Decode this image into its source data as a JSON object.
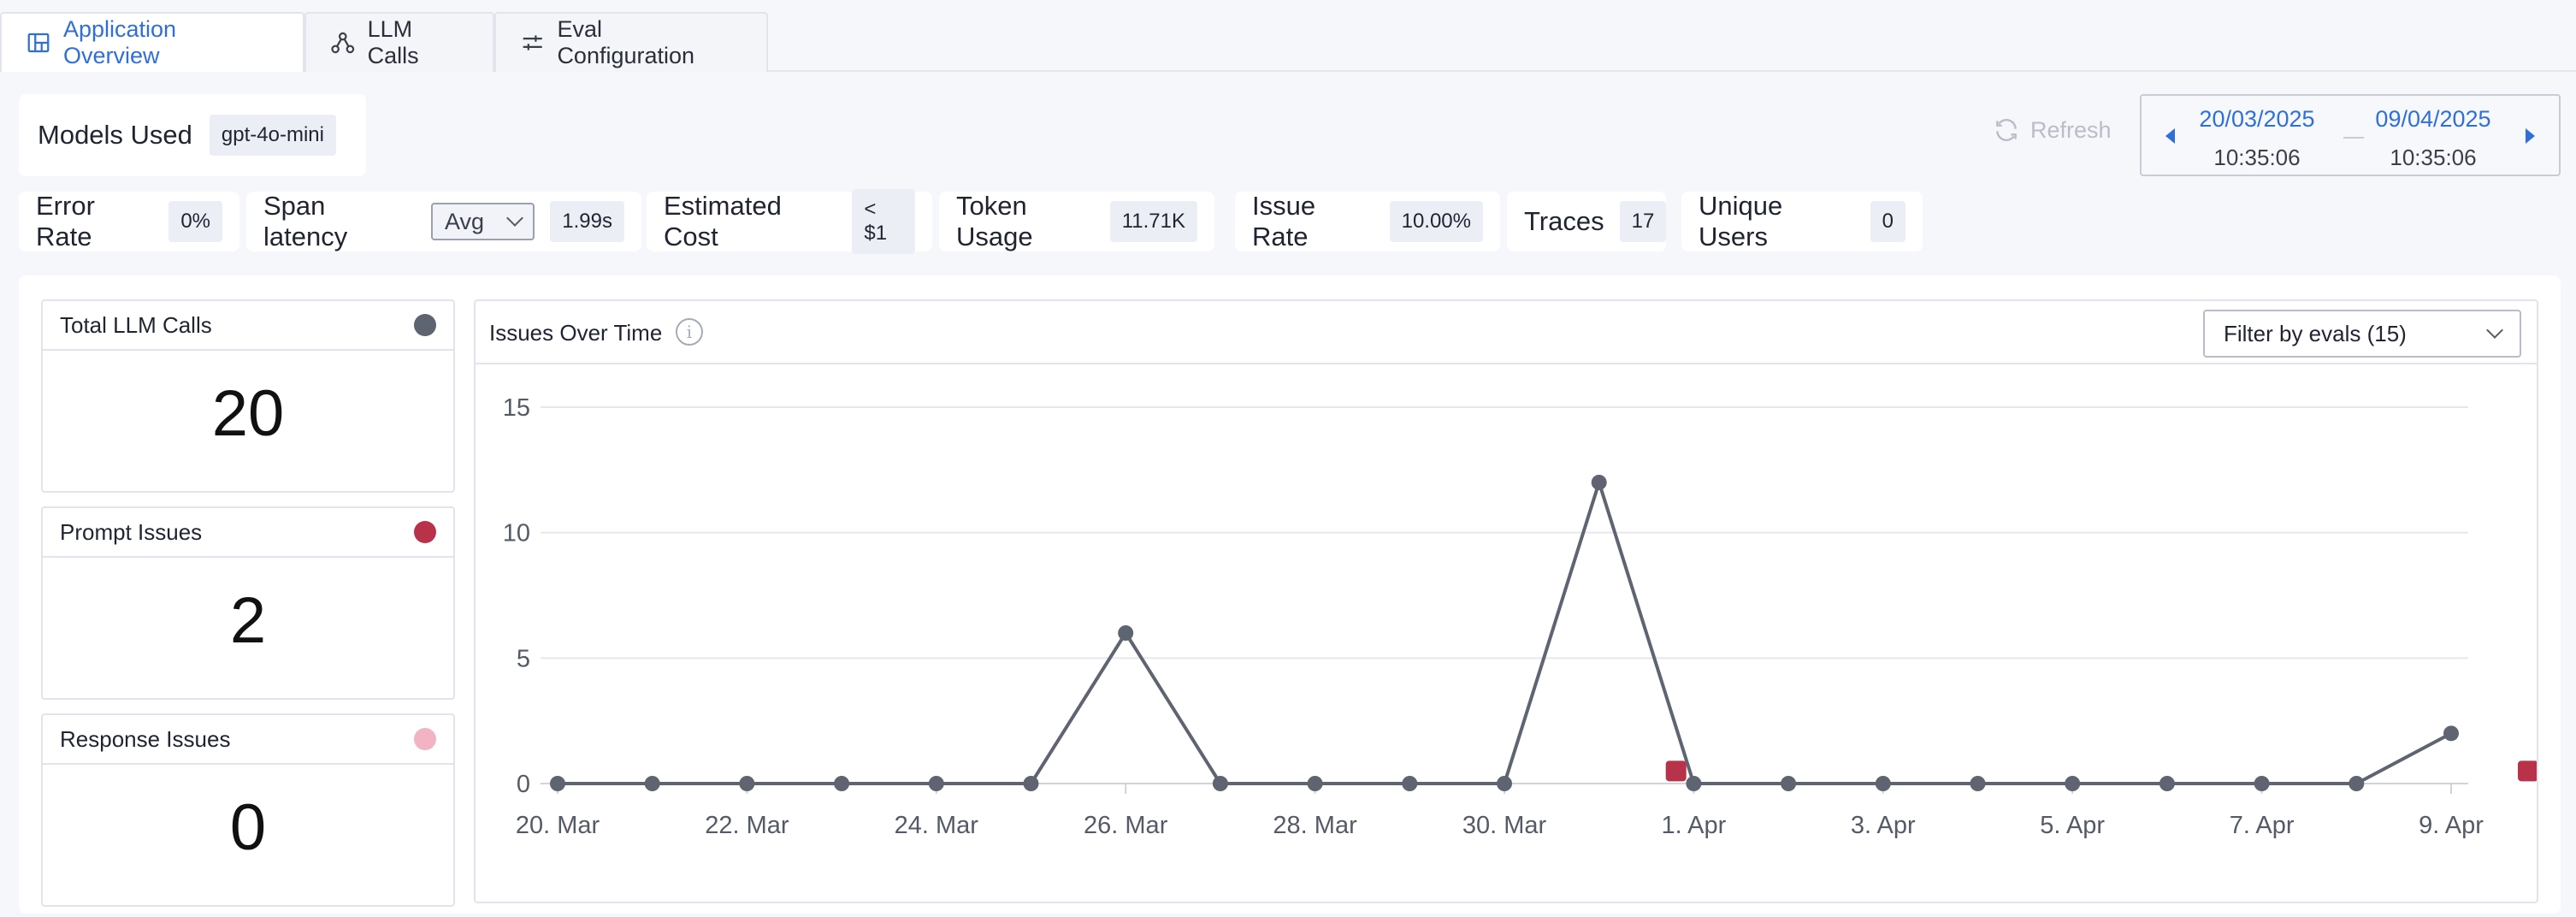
{
  "tabs": [
    {
      "label": "Application Overview",
      "icon": "layout-icon",
      "active": true
    },
    {
      "label": "LLM Calls",
      "icon": "graph-icon",
      "active": false
    },
    {
      "label": "Eval Configuration",
      "icon": "sliders-icon",
      "active": false
    }
  ],
  "models": {
    "label": "Models Used",
    "value": "gpt-4o-mini"
  },
  "refresh_label": "Refresh",
  "daterange": {
    "start_date": "20/03/2025",
    "start_time": "10:35:06",
    "end_date": "09/04/2025",
    "end_time": "10:35:06"
  },
  "metrics": {
    "error_rate": {
      "label": "Error Rate",
      "value": "0%"
    },
    "span_latency": {
      "label": "Span latency",
      "mode": "Avg",
      "value": "1.99s"
    },
    "estimated_cost": {
      "label": "Estimated Cost",
      "value": "< $1"
    },
    "token_usage": {
      "label": "Token Usage",
      "value": "11.71K"
    },
    "issue_rate": {
      "label": "Issue Rate",
      "value": "10.00%"
    },
    "traces": {
      "label": "Traces",
      "value": "17"
    },
    "unique_users": {
      "label": "Unique Users",
      "value": "0"
    }
  },
  "stats": [
    {
      "label": "Total LLM Calls",
      "value": "20",
      "color": "#5e6470"
    },
    {
      "label": "Prompt Issues",
      "value": "2",
      "color": "#b8334a"
    },
    {
      "label": "Response Issues",
      "value": "0",
      "color": "#f2b3c3"
    }
  ],
  "chart": {
    "title": "Issues Over Time",
    "filter_label": "Filter by evals (15)"
  },
  "chart_data": {
    "type": "line",
    "title": "Issues Over Time",
    "x": [
      "2025-03-20",
      "2025-03-21",
      "2025-03-22",
      "2025-03-23",
      "2025-03-24",
      "2025-03-25",
      "2025-03-26",
      "2025-03-27",
      "2025-03-28",
      "2025-03-29",
      "2025-03-30",
      "2025-03-31",
      "2025-04-01",
      "2025-04-02",
      "2025-04-03",
      "2025-04-04",
      "2025-04-05",
      "2025-04-06",
      "2025-04-07",
      "2025-04-08",
      "2025-04-09"
    ],
    "series": [
      {
        "values": [
          0,
          0,
          0,
          0,
          0,
          0,
          6,
          0,
          0,
          0,
          0,
          12,
          0,
          0,
          0,
          0,
          0,
          0,
          0,
          0,
          2
        ],
        "color": "#5e6470"
      }
    ],
    "markers": [
      {
        "x": "2025-03-31",
        "y": 0.5,
        "color": "#b8334a"
      },
      {
        "x": "2025-04-09",
        "y": 0.5,
        "color": "#b8334a"
      }
    ],
    "yticks": [
      "0",
      "5",
      "10",
      "15"
    ],
    "xticks": [
      "20. Mar",
      "22. Mar",
      "24. Mar",
      "26. Mar",
      "28. Mar",
      "30. Mar",
      "1. Apr",
      "3. Apr",
      "5. Apr",
      "7. Apr",
      "9. Apr"
    ],
    "ylim": [
      0,
      15
    ],
    "grid": true
  }
}
